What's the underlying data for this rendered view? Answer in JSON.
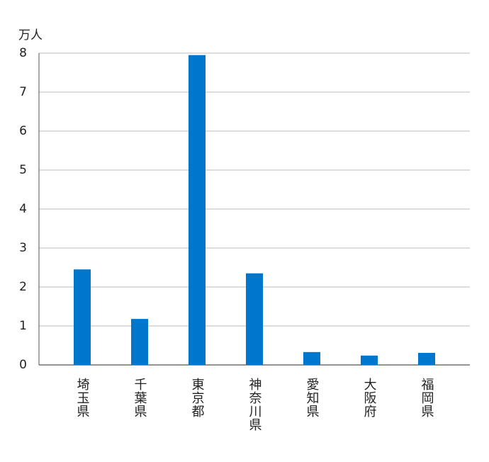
{
  "chart_data": {
    "type": "bar",
    "y_label": "万人",
    "categories": [
      "埼玉県",
      "千葉県",
      "東京都",
      "神奈川県",
      "愛知県",
      "大阪府",
      "福岡県"
    ],
    "values": [
      2.45,
      1.18,
      7.95,
      2.35,
      0.33,
      0.24,
      0.31
    ],
    "color": "#0077cc",
    "ylim": [
      0,
      8
    ],
    "yticks": [
      0,
      1,
      2,
      3,
      4,
      5,
      6,
      7,
      8
    ],
    "grid": true
  }
}
